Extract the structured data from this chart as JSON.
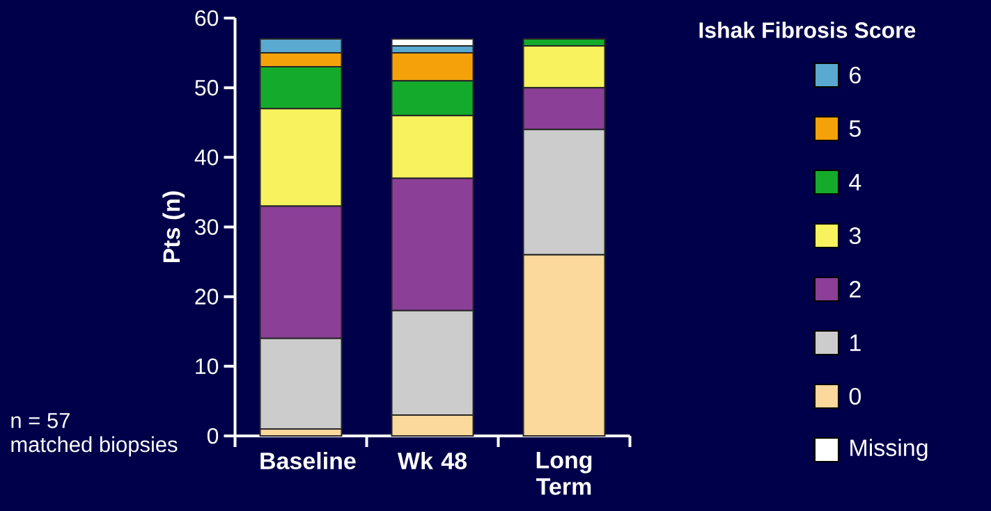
{
  "chart_data": {
    "type": "bar",
    "stacked": true,
    "ylabel": "Pts (n)",
    "legend_title": "Ishak Fibrosis Score",
    "legend": "right",
    "categories": [
      "Baseline",
      "Wk 48",
      "Long Term"
    ],
    "ylim": [
      0,
      60
    ],
    "yticks": [
      0,
      10,
      20,
      30,
      40,
      50,
      60
    ],
    "series": [
      {
        "name": "0",
        "color": "#fbd89b",
        "values": [
          1,
          3,
          26
        ]
      },
      {
        "name": "1",
        "color": "#cccccc",
        "values": [
          13,
          15,
          18
        ]
      },
      {
        "name": "2",
        "color": "#8b3f97",
        "values": [
          19,
          19,
          6
        ]
      },
      {
        "name": "3",
        "color": "#f8f25e",
        "values": [
          14,
          9,
          6
        ]
      },
      {
        "name": "4",
        "color": "#14aa2c",
        "values": [
          6,
          5,
          1
        ]
      },
      {
        "name": "5",
        "color": "#f5a20a",
        "values": [
          2,
          4,
          0
        ]
      },
      {
        "name": "6",
        "color": "#5aa9d0",
        "values": [
          2,
          1,
          0
        ]
      },
      {
        "name": "Missing",
        "color": "#ffffff",
        "values": [
          0,
          1,
          0
        ]
      }
    ],
    "annotations": [
      "n = 57",
      "matched biopsies"
    ]
  }
}
